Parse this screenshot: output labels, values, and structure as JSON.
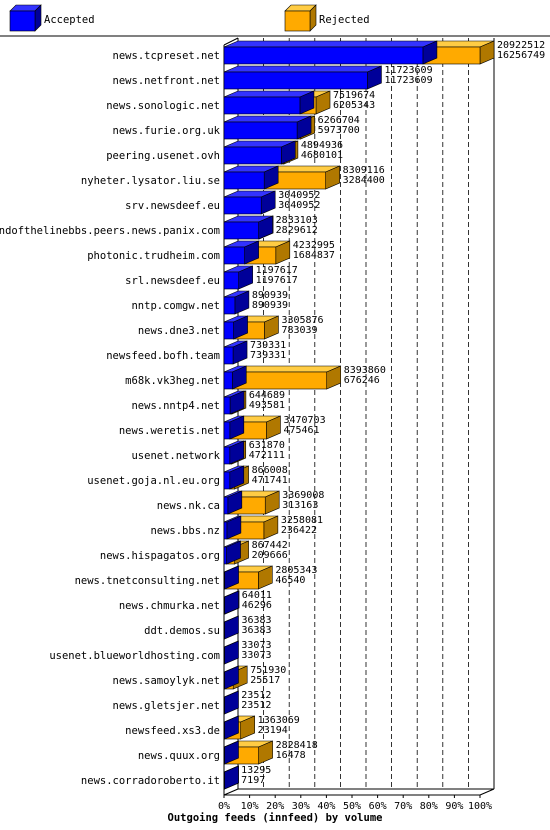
{
  "legend": {
    "accepted_label": "Accepted",
    "rejected_label": "Rejected"
  },
  "colors": {
    "accepted": "#0000ff",
    "accepted_top": "#3333ff",
    "accepted_side": "#000099",
    "rejected": "#ffaa00",
    "rejected_top": "#ffcc44",
    "rejected_side": "#b07800"
  },
  "chart_data": {
    "type": "bar",
    "orientation": "horizontal",
    "stacked": true,
    "xlabel": "Outgoing feeds (innfeed) by volume",
    "ylabel": "",
    "x_ticks": [
      "0%",
      "10%",
      "20%",
      "30%",
      "40%",
      "50%",
      "60%",
      "70%",
      "80%",
      "90%",
      "100%"
    ],
    "xlim": [
      0,
      100
    ],
    "grid": true,
    "legend_position": "top",
    "categories": [
      "news.tcpreset.net",
      "news.netfront.net",
      "news.sonologic.net",
      "news.furie.org.uk",
      "peering.usenet.ovh",
      "nyheter.lysator.liu.se",
      "srv.newsdeef.eu",
      "endofthelinebbs.peers.news.panix.com",
      "photonic.trudheim.com",
      "srl.newsdeef.eu",
      "nntp.comgw.net",
      "news.dne3.net",
      "newsfeed.bofh.team",
      "m68k.vk3heg.net",
      "news.nntp4.net",
      "news.weretis.net",
      "usenet.network",
      "usenet.goja.nl.eu.org",
      "news.nk.ca",
      "news.bbs.nz",
      "news.hispagatos.org",
      "news.tnetconsulting.net",
      "news.chmurka.net",
      "ddt.demos.su",
      "usenet.blueworldhosting.com",
      "news.samoylyk.net",
      "news.gletsjer.net",
      "newsfeed.xs3.de",
      "news.quux.org",
      "news.corradoroberto.it"
    ],
    "offered": [
      20922512,
      11723609,
      7519674,
      6266704,
      4894936,
      8309116,
      3040952,
      2833103,
      4232995,
      1197617,
      890939,
      3305876,
      739331,
      8393860,
      644689,
      3470703,
      631870,
      866008,
      3369008,
      3258081,
      867442,
      2805343,
      64011,
      36383,
      33073,
      751930,
      23512,
      1363069,
      2828418,
      13295
    ],
    "accepted": [
      16256749,
      11723609,
      6205343,
      5973700,
      4680101,
      3284400,
      3040952,
      2829612,
      1684837,
      1197617,
      890939,
      783039,
      739331,
      676246,
      493581,
      475461,
      472111,
      471741,
      313163,
      236422,
      209666,
      46540,
      46296,
      36383,
      33073,
      25517,
      23512,
      23194,
      16478,
      7197
    ],
    "series": [
      {
        "name": "Accepted"
      },
      {
        "name": "Rejected"
      }
    ]
  }
}
